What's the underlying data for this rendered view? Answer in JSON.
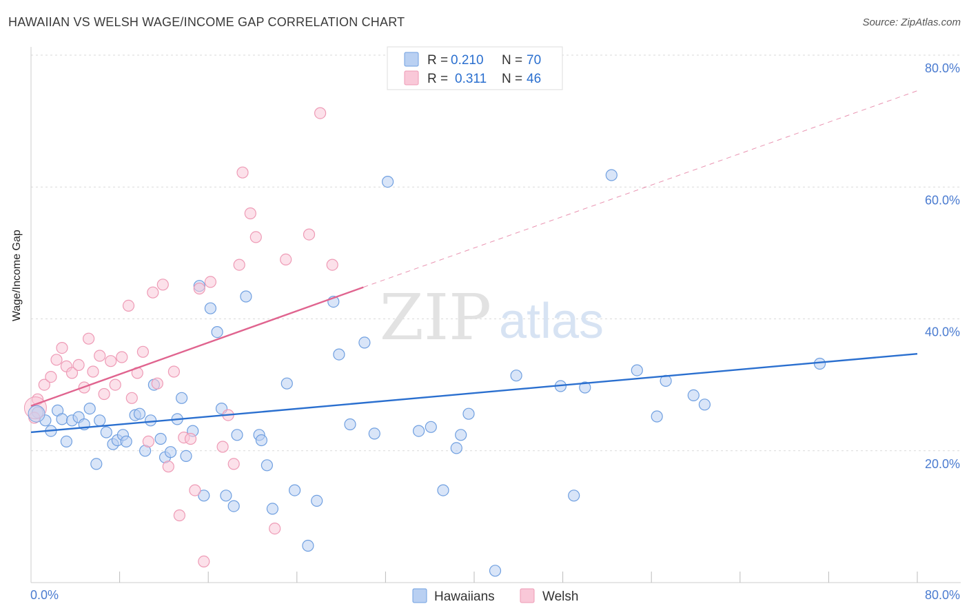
{
  "header": {
    "title": "HAWAIIAN VS WELSH WAGE/INCOME GAP CORRELATION CHART",
    "source": "Source: ZipAtlas.com"
  },
  "watermark": {
    "zip": "ZIP",
    "atlas": "atlas"
  },
  "chart_data": {
    "type": "scatter",
    "title": "HAWAIIAN VS WELSH WAGE/INCOME GAP CORRELATION CHART",
    "xlabel": "",
    "ylabel": "Wage/Income Gap",
    "xlim": [
      0,
      80
    ],
    "ylim": [
      0,
      80
    ],
    "x_tick_labels": [
      "0.0%",
      "80.0%"
    ],
    "y_ticks": [
      20,
      40,
      60,
      80
    ],
    "y_tick_labels": [
      "20.0%",
      "40.0%",
      "60.0%",
      "80.0%"
    ],
    "grid": true,
    "legend_position": "top-center",
    "series": [
      {
        "name": "Hawaiians",
        "color": "#6f9fe0",
        "fill": "#b9d0f2",
        "line_color": "#2a6fcf",
        "legend_r": "R =",
        "r_value": "0.210",
        "legend_n": "N =",
        "n_value": "70",
        "trend": {
          "x0": 0,
          "y0": 22.8,
          "x1": 80,
          "y1": 34.7
        },
        "points": [
          [
            0.6,
            25.8
          ],
          [
            1.3,
            24.6
          ],
          [
            1.8,
            23.0
          ],
          [
            2.4,
            26.1
          ],
          [
            2.8,
            24.8
          ],
          [
            3.2,
            21.4
          ],
          [
            3.7,
            24.6
          ],
          [
            4.3,
            25.1
          ],
          [
            4.8,
            24.0
          ],
          [
            5.3,
            26.4
          ],
          [
            5.9,
            18.0
          ],
          [
            6.2,
            24.6
          ],
          [
            6.8,
            22.8
          ],
          [
            7.4,
            21.0
          ],
          [
            7.8,
            21.6
          ],
          [
            8.3,
            22.4
          ],
          [
            8.6,
            21.4
          ],
          [
            9.4,
            25.4
          ],
          [
            9.8,
            25.6
          ],
          [
            10.3,
            20.0
          ],
          [
            10.8,
            24.6
          ],
          [
            11.1,
            30.0
          ],
          [
            11.7,
            21.8
          ],
          [
            12.1,
            19.0
          ],
          [
            12.6,
            19.8
          ],
          [
            13.2,
            24.8
          ],
          [
            13.6,
            28.0
          ],
          [
            14.0,
            19.2
          ],
          [
            14.6,
            23.0
          ],
          [
            15.2,
            45.0
          ],
          [
            15.6,
            13.2
          ],
          [
            16.2,
            41.6
          ],
          [
            16.8,
            38.0
          ],
          [
            17.2,
            26.4
          ],
          [
            17.6,
            13.2
          ],
          [
            18.3,
            11.6
          ],
          [
            18.6,
            22.4
          ],
          [
            19.4,
            43.4
          ],
          [
            20.6,
            22.4
          ],
          [
            20.8,
            21.6
          ],
          [
            21.3,
            17.8
          ],
          [
            21.8,
            11.2
          ],
          [
            23.1,
            30.2
          ],
          [
            23.8,
            14.0
          ],
          [
            25.0,
            5.6
          ],
          [
            25.8,
            12.4
          ],
          [
            27.3,
            42.6
          ],
          [
            27.8,
            34.6
          ],
          [
            28.8,
            24.0
          ],
          [
            30.1,
            36.4
          ],
          [
            31.0,
            22.6
          ],
          [
            32.2,
            60.8
          ],
          [
            35.0,
            23.0
          ],
          [
            36.1,
            23.6
          ],
          [
            37.2,
            14.0
          ],
          [
            38.4,
            20.4
          ],
          [
            38.8,
            22.4
          ],
          [
            39.5,
            25.6
          ],
          [
            41.9,
            1.8
          ],
          [
            43.8,
            31.4
          ],
          [
            47.8,
            29.8
          ],
          [
            49.0,
            13.2
          ],
          [
            50.0,
            29.6
          ],
          [
            52.4,
            61.8
          ],
          [
            54.7,
            32.2
          ],
          [
            56.5,
            25.2
          ],
          [
            57.3,
            30.6
          ],
          [
            59.8,
            28.4
          ],
          [
            60.8,
            27.0
          ],
          [
            71.2,
            33.2
          ]
        ]
      },
      {
        "name": "Welsh",
        "color": "#ee9ab5",
        "fill": "#f9c8d8",
        "line_color": "#e0648f",
        "legend_r": "R =",
        "r_value": "0.311",
        "legend_n": "N =",
        "n_value": "46",
        "trend": {
          "x0": 0,
          "y0": 26.8,
          "x1": 30,
          "y1": 44.8
        },
        "trend_ext": {
          "x0": 30,
          "y0": 44.8,
          "x1": 80,
          "y1": 74.6
        },
        "points": [
          [
            0.3,
            25.0
          ],
          [
            0.6,
            27.8
          ],
          [
            1.2,
            30.0
          ],
          [
            1.8,
            31.2
          ],
          [
            2.3,
            33.8
          ],
          [
            2.8,
            35.6
          ],
          [
            3.2,
            32.8
          ],
          [
            3.7,
            31.8
          ],
          [
            4.3,
            33.0
          ],
          [
            4.8,
            29.6
          ],
          [
            5.2,
            37.0
          ],
          [
            5.6,
            32.0
          ],
          [
            6.2,
            34.4
          ],
          [
            6.6,
            28.6
          ],
          [
            7.2,
            33.6
          ],
          [
            7.6,
            30.0
          ],
          [
            8.2,
            34.2
          ],
          [
            8.8,
            42.0
          ],
          [
            9.1,
            28.0
          ],
          [
            9.6,
            31.8
          ],
          [
            10.1,
            35.0
          ],
          [
            10.6,
            21.4
          ],
          [
            11.0,
            44.0
          ],
          [
            11.4,
            30.2
          ],
          [
            11.9,
            45.2
          ],
          [
            12.4,
            17.6
          ],
          [
            12.9,
            32.0
          ],
          [
            13.4,
            10.2
          ],
          [
            13.8,
            22.0
          ],
          [
            14.4,
            21.8
          ],
          [
            14.8,
            14.0
          ],
          [
            15.2,
            44.6
          ],
          [
            15.6,
            3.2
          ],
          [
            16.2,
            45.6
          ],
          [
            17.3,
            20.6
          ],
          [
            17.8,
            25.4
          ],
          [
            18.3,
            18.0
          ],
          [
            18.8,
            48.2
          ],
          [
            19.1,
            62.2
          ],
          [
            19.8,
            56.0
          ],
          [
            20.3,
            52.4
          ],
          [
            22.0,
            8.2
          ],
          [
            23.0,
            49.0
          ],
          [
            25.1,
            52.8
          ],
          [
            26.1,
            71.2
          ],
          [
            27.2,
            48.2
          ]
        ]
      }
    ]
  }
}
